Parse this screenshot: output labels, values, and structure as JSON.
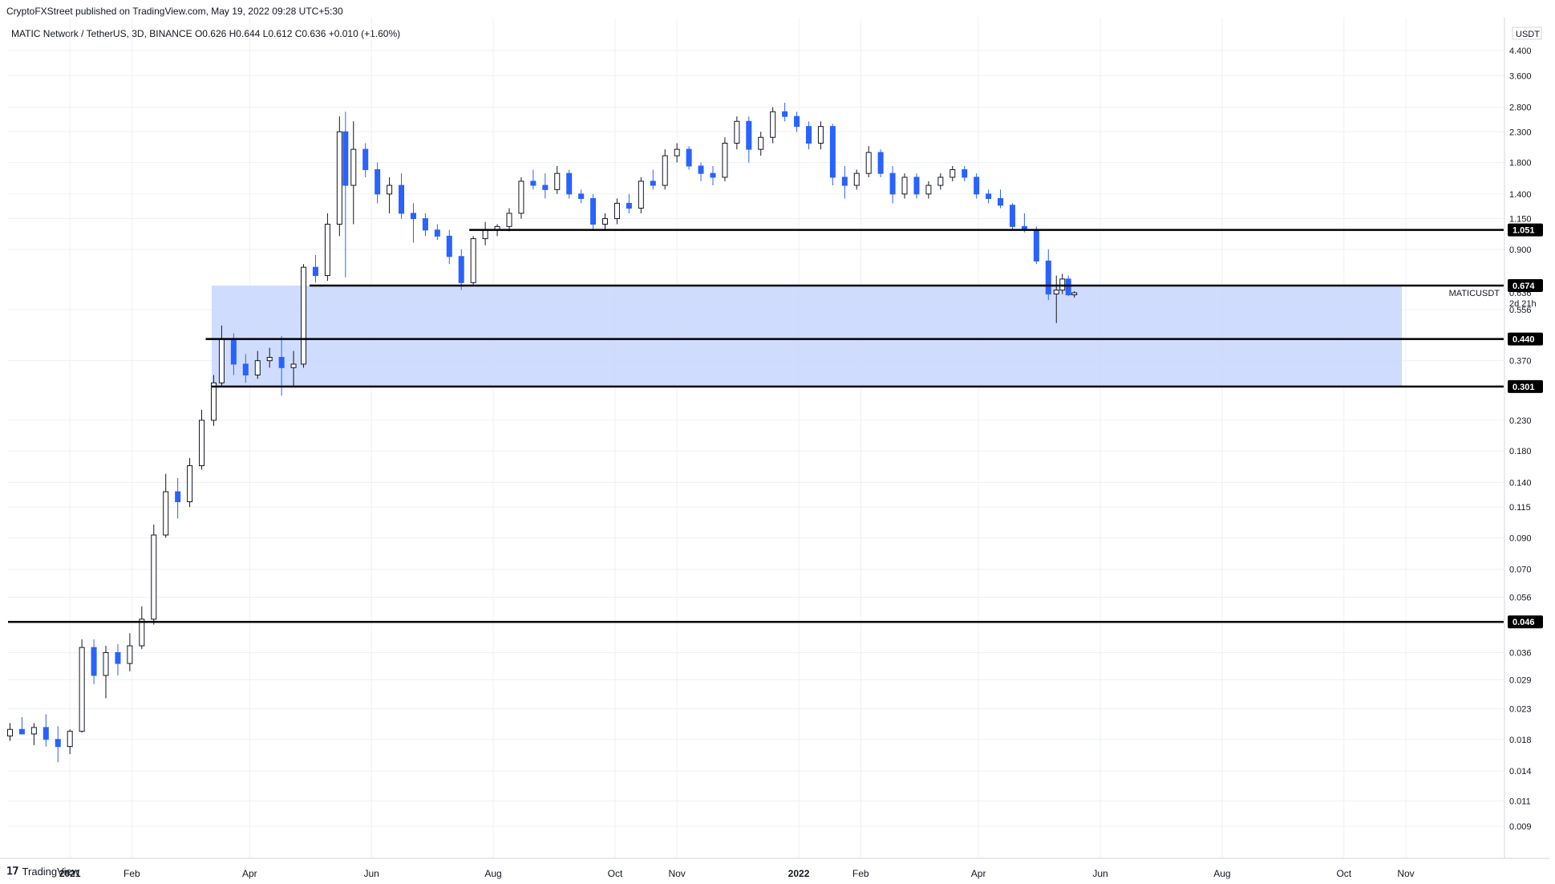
{
  "header": {
    "published_line": "CryptoFXStreet published on TradingView.com, May 19, 2022 09:28 UTC+5:30",
    "symbol_line": "MATIC Network / TetherUS, 3D, BINANCE  O0.626  H0.644  L0.612  C0.636  +0.010 (+1.60%)"
  },
  "footer": {
    "logo_text": "TradingView"
  },
  "colors": {
    "up": "#ffffff",
    "down": "#2962ff",
    "zone": "#c8d6fd",
    "grid": "#eef0f4",
    "level": "#000000"
  },
  "chart_data": {
    "type": "candlestick",
    "title": "",
    "currency_label": "USDT",
    "scale": "log",
    "y_ticks": [
      "4.400",
      "3.600",
      "2.800",
      "2.300",
      "1.800",
      "1.400",
      "1.150",
      "0.900",
      "0.556",
      "0.370",
      "0.230",
      "0.180",
      "0.140",
      "0.115",
      "0.090",
      "0.070",
      "0.056",
      "0.036",
      "0.029",
      "0.023",
      "0.018",
      "0.014",
      "0.011",
      "0.009"
    ],
    "y_tick_values": [
      4.4,
      3.6,
      2.8,
      2.3,
      1.8,
      1.4,
      1.15,
      0.9,
      0.556,
      0.37,
      0.23,
      0.18,
      0.14,
      0.115,
      0.09,
      0.07,
      0.056,
      0.036,
      0.029,
      0.023,
      0.018,
      0.014,
      0.011,
      0.009
    ],
    "x_ticks": [
      "2021",
      "Feb",
      "Apr",
      "Jun",
      "Aug",
      "Oct",
      "Nov",
      "2022",
      "Feb",
      "Apr",
      "Jun",
      "Aug",
      "Oct",
      "Nov"
    ],
    "x_tick_dates": [
      "2021-01-01",
      "2021-02-01",
      "2021-04-01",
      "2021-06-01",
      "2021-08-01",
      "2021-10-01",
      "2021-11-01",
      "2022-01-01",
      "2022-02-01",
      "2022-04-01",
      "2022-06-01",
      "2022-08-01",
      "2022-10-01",
      "2022-11-01"
    ],
    "x_range": [
      "2020-12-01",
      "2022-12-20"
    ],
    "support_levels": [
      {
        "value": 1.051,
        "label": "1.051",
        "from": "2021-07-20"
      },
      {
        "value": 0.674,
        "label": "0.674",
        "from": "2021-05-01"
      },
      {
        "value": 0.44,
        "label": "0.440",
        "from": "2021-03-10"
      },
      {
        "value": 0.301,
        "label": "0.301",
        "from": "2021-03-13"
      },
      {
        "value": 0.046,
        "label": "0.046",
        "from": "2020-12-01"
      }
    ],
    "demand_zone": {
      "from": "2021-03-13",
      "to": "2022-10-30",
      "low": 0.301,
      "high": 0.674
    },
    "current": {
      "symbol": "MATICUSDT",
      "price": "0.636",
      "countdown": "2d 21h"
    },
    "candles": [
      [
        "2020-12-02",
        0.0185,
        0.0205,
        0.0178,
        0.0195
      ],
      [
        "2020-12-08",
        0.0195,
        0.0215,
        0.0188,
        0.0188
      ],
      [
        "2020-12-14",
        0.0188,
        0.0205,
        0.0172,
        0.0198
      ],
      [
        "2020-12-20",
        0.0198,
        0.022,
        0.017,
        0.018
      ],
      [
        "2020-12-26",
        0.018,
        0.02,
        0.015,
        0.017
      ],
      [
        "2021-01-01",
        0.017,
        0.0195,
        0.016,
        0.0192
      ],
      [
        "2021-01-07",
        0.0192,
        0.04,
        0.019,
        0.0375
      ],
      [
        "2021-01-13",
        0.0375,
        0.04,
        0.028,
        0.03
      ],
      [
        "2021-01-19",
        0.03,
        0.038,
        0.025,
        0.036
      ],
      [
        "2021-01-25",
        0.036,
        0.0385,
        0.03,
        0.033
      ],
      [
        "2021-01-31",
        0.033,
        0.042,
        0.031,
        0.038
      ],
      [
        "2021-02-06",
        0.038,
        0.052,
        0.037,
        0.047
      ],
      [
        "2021-02-12",
        0.047,
        0.1,
        0.045,
        0.092
      ],
      [
        "2021-02-18",
        0.092,
        0.15,
        0.09,
        0.13
      ],
      [
        "2021-02-24",
        0.13,
        0.145,
        0.105,
        0.12
      ],
      [
        "2021-03-02",
        0.12,
        0.17,
        0.115,
        0.16
      ],
      [
        "2021-03-08",
        0.16,
        0.25,
        0.155,
        0.23
      ],
      [
        "2021-03-14",
        0.23,
        0.33,
        0.22,
        0.31
      ],
      [
        "2021-03-18",
        0.31,
        0.49,
        0.3,
        0.44
      ],
      [
        "2021-03-24",
        0.44,
        0.46,
        0.33,
        0.36
      ],
      [
        "2021-03-30",
        0.36,
        0.39,
        0.31,
        0.33
      ],
      [
        "2021-04-05",
        0.33,
        0.4,
        0.32,
        0.37
      ],
      [
        "2021-04-11",
        0.37,
        0.41,
        0.35,
        0.38
      ],
      [
        "2021-04-17",
        0.38,
        0.45,
        0.28,
        0.35
      ],
      [
        "2021-04-23",
        0.35,
        0.4,
        0.3,
        0.36
      ],
      [
        "2021-04-28",
        0.36,
        0.8,
        0.35,
        0.78
      ],
      [
        "2021-05-04",
        0.78,
        0.86,
        0.69,
        0.73
      ],
      [
        "2021-05-10",
        0.73,
        1.2,
        0.7,
        1.1
      ],
      [
        "2021-05-16",
        1.1,
        2.6,
        1.0,
        2.3
      ],
      [
        "2021-05-19",
        2.3,
        2.7,
        0.72,
        1.5
      ],
      [
        "2021-05-23",
        1.5,
        2.5,
        1.1,
        2.0
      ],
      [
        "2021-05-29",
        2.0,
        2.1,
        1.6,
        1.7
      ],
      [
        "2021-06-04",
        1.7,
        1.8,
        1.3,
        1.4
      ],
      [
        "2021-06-10",
        1.4,
        1.6,
        1.2,
        1.5
      ],
      [
        "2021-06-16",
        1.5,
        1.65,
        1.15,
        1.2
      ],
      [
        "2021-06-22",
        1.2,
        1.3,
        0.95,
        1.15
      ],
      [
        "2021-06-28",
        1.15,
        1.2,
        1.0,
        1.05
      ],
      [
        "2021-07-04",
        1.05,
        1.1,
        0.97,
        1.0
      ],
      [
        "2021-07-10",
        1.0,
        1.05,
        0.8,
        0.85
      ],
      [
        "2021-07-16",
        0.85,
        0.9,
        0.65,
        0.69
      ],
      [
        "2021-07-22",
        0.69,
        1.0,
        0.68,
        0.98
      ],
      [
        "2021-07-28",
        0.98,
        1.12,
        0.93,
        1.05
      ],
      [
        "2021-08-03",
        1.05,
        1.1,
        1.0,
        1.08
      ],
      [
        "2021-08-09",
        1.08,
        1.25,
        1.04,
        1.2
      ],
      [
        "2021-08-15",
        1.2,
        1.6,
        1.15,
        1.55
      ],
      [
        "2021-08-21",
        1.55,
        1.7,
        1.45,
        1.5
      ],
      [
        "2021-08-27",
        1.5,
        1.65,
        1.35,
        1.45
      ],
      [
        "2021-09-02",
        1.45,
        1.75,
        1.4,
        1.65
      ],
      [
        "2021-09-08",
        1.65,
        1.7,
        1.35,
        1.4
      ],
      [
        "2021-09-14",
        1.4,
        1.45,
        1.3,
        1.35
      ],
      [
        "2021-09-20",
        1.35,
        1.4,
        1.05,
        1.1
      ],
      [
        "2021-09-26",
        1.1,
        1.2,
        1.05,
        1.15
      ],
      [
        "2021-10-02",
        1.15,
        1.35,
        1.1,
        1.3
      ],
      [
        "2021-10-08",
        1.3,
        1.4,
        1.2,
        1.25
      ],
      [
        "2021-10-14",
        1.25,
        1.6,
        1.2,
        1.55
      ],
      [
        "2021-10-20",
        1.55,
        1.7,
        1.45,
        1.5
      ],
      [
        "2021-10-26",
        1.5,
        2.0,
        1.45,
        1.9
      ],
      [
        "2021-11-01",
        1.9,
        2.1,
        1.8,
        2.0
      ],
      [
        "2021-11-07",
        2.0,
        2.05,
        1.7,
        1.75
      ],
      [
        "2021-11-13",
        1.75,
        1.8,
        1.55,
        1.65
      ],
      [
        "2021-11-19",
        1.65,
        1.75,
        1.5,
        1.6
      ],
      [
        "2021-11-25",
        1.6,
        2.2,
        1.55,
        2.1
      ],
      [
        "2021-12-01",
        2.1,
        2.6,
        2.0,
        2.5
      ],
      [
        "2021-12-07",
        2.5,
        2.6,
        1.8,
        2.0
      ],
      [
        "2021-12-13",
        2.0,
        2.3,
        1.9,
        2.2
      ],
      [
        "2021-12-19",
        2.2,
        2.8,
        2.1,
        2.7
      ],
      [
        "2021-12-25",
        2.7,
        2.9,
        2.5,
        2.6
      ],
      [
        "2021-12-31",
        2.6,
        2.7,
        2.3,
        2.4
      ],
      [
        "2022-01-06",
        2.4,
        2.5,
        2.0,
        2.1
      ],
      [
        "2022-01-12",
        2.1,
        2.5,
        2.0,
        2.4
      ],
      [
        "2022-01-18",
        2.4,
        2.45,
        1.5,
        1.6
      ],
      [
        "2022-01-24",
        1.6,
        1.75,
        1.35,
        1.5
      ],
      [
        "2022-01-30",
        1.5,
        1.7,
        1.45,
        1.65
      ],
      [
        "2022-02-05",
        1.65,
        2.05,
        1.6,
        1.95
      ],
      [
        "2022-02-11",
        1.95,
        2.0,
        1.6,
        1.65
      ],
      [
        "2022-02-17",
        1.65,
        1.75,
        1.3,
        1.4
      ],
      [
        "2022-02-23",
        1.4,
        1.65,
        1.35,
        1.6
      ],
      [
        "2022-03-01",
        1.6,
        1.65,
        1.35,
        1.4
      ],
      [
        "2022-03-07",
        1.4,
        1.55,
        1.35,
        1.5
      ],
      [
        "2022-03-13",
        1.5,
        1.65,
        1.45,
        1.6
      ],
      [
        "2022-03-19",
        1.6,
        1.75,
        1.55,
        1.7
      ],
      [
        "2022-03-25",
        1.7,
        1.75,
        1.55,
        1.6
      ],
      [
        "2022-03-31",
        1.6,
        1.65,
        1.35,
        1.4
      ],
      [
        "2022-04-06",
        1.4,
        1.45,
        1.3,
        1.35
      ],
      [
        "2022-04-12",
        1.35,
        1.45,
        1.25,
        1.28
      ],
      [
        "2022-04-18",
        1.28,
        1.3,
        1.05,
        1.08
      ],
      [
        "2022-04-24",
        1.08,
        1.2,
        1.03,
        1.05
      ],
      [
        "2022-04-30",
        1.05,
        1.08,
        0.8,
        0.82
      ],
      [
        "2022-05-06",
        0.82,
        0.9,
        0.6,
        0.63
      ],
      [
        "2022-05-10",
        0.63,
        0.73,
        0.5,
        0.65
      ],
      [
        "2022-05-13",
        0.65,
        0.74,
        0.63,
        0.71
      ],
      [
        "2022-05-16",
        0.71,
        0.73,
        0.62,
        0.626
      ],
      [
        "2022-05-19",
        0.626,
        0.644,
        0.612,
        0.636
      ]
    ]
  }
}
